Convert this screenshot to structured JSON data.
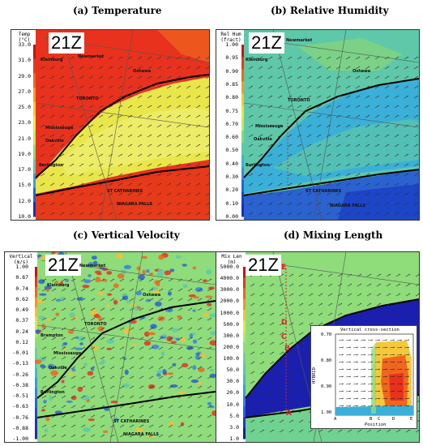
{
  "panels": [
    {
      "title": "(a) Temperature",
      "timestamp": "21Z",
      "colorbar": {
        "title_line1": "Temp",
        "title_line2": "(°C)",
        "ticks": [
          "33.0",
          "31.0",
          "29.0",
          "27.0",
          "25.0",
          "23.0",
          "21.0",
          "19.0",
          "17.0",
          "15.0",
          "12.0",
          "10.0"
        ],
        "colors": [
          "#c81414",
          "#e63a1a",
          "#f0661e",
          "#f59a2a",
          "#f4c83a",
          "#e8e64a",
          "#c6e85a",
          "#8fd870",
          "#5ec8a8",
          "#3aa0d8",
          "#2a62d0",
          "#1a2fb4"
        ]
      },
      "places": [
        "Kleinburg",
        "Newmarket",
        "Oshawa",
        "TORONTO",
        "Mississauga",
        "Oakville",
        "Burlington",
        "ST CATHARINES",
        "NIAGARA FALLS"
      ]
    },
    {
      "title": "(b) Relative Humidity",
      "timestamp": "21Z",
      "colorbar": {
        "title_line1": "Rel Hum",
        "title_line2": "(fract)",
        "ticks": [
          "1.00",
          "0.95",
          "0.90",
          "0.85",
          "0.80",
          "0.75",
          "0.70",
          "0.60",
          "0.50",
          "0.40",
          "0.30",
          "0.20",
          "0.10",
          "0.00"
        ],
        "colors": [
          "#c81414",
          "#e63a1a",
          "#f0661e",
          "#f59a2a",
          "#f4c83a",
          "#e8e64a",
          "#c6e85a",
          "#8fd870",
          "#5ec8a8",
          "#3ab0d8",
          "#3a88e0",
          "#2a62d0",
          "#1a3fc4",
          "#1a2fb4"
        ]
      },
      "places": [
        "Kleinburg",
        "Newmarket",
        "Oshawa",
        "TORONTO",
        "Mississauga",
        "Oakville",
        "Burlington",
        "ST CATHARINES",
        "NIAGARA FALLS"
      ]
    },
    {
      "title": "(c) Vertical Velocity",
      "timestamp": "21Z",
      "colorbar": {
        "title_line1": "Vertical",
        "title_line2": "(m/s)",
        "ticks": [
          "1.00",
          "0.87",
          "0.74",
          "0.62",
          "0.49",
          "0.37",
          "0.24",
          "0.12",
          "-0.01",
          "-0.13",
          "-0.26",
          "-0.38",
          "-0.51",
          "-0.63",
          "-0.76",
          "-0.88",
          "-1.00"
        ],
        "colors": [
          "#c81414",
          "#e03a1a",
          "#f0661e",
          "#f5922a",
          "#f4c03a",
          "#e8e24a",
          "#bce660",
          "#8edc7a",
          "#6fd290",
          "#5ec8a8",
          "#4ab8c8",
          "#3a9cd8",
          "#3a80e0",
          "#2a62d0",
          "#1f4ac4",
          "#1a36b8",
          "#1a2fb4"
        ]
      },
      "places": [
        "Newmarket",
        "Kleinburg",
        "Oshawa",
        "TORONTO",
        "Brampton",
        "Mississauga",
        "Oakville",
        "Burlington",
        "ST CATHARINES",
        "NIAGARA FALLS"
      ]
    },
    {
      "title": "(d) Mixing Length",
      "timestamp": "21Z",
      "colorbar": {
        "title_line1": "Mix Len",
        "title_line2": "(m)",
        "ticks": [
          "5000.0",
          "4000.0",
          "3000.0",
          "2000.0",
          "1000.0",
          "500.0",
          "300.0",
          "200.0",
          "100.0",
          "50.0",
          "30.0",
          "20.0",
          "10.0",
          "5.0",
          "3.0",
          "1.0"
        ],
        "colors": [
          "#c81414",
          "#e03a1a",
          "#f0661e",
          "#f5922a",
          "#f4c03a",
          "#e8e24a",
          "#bce660",
          "#8edc7a",
          "#6fd290",
          "#5ec8a8",
          "#4ab8c8",
          "#3a9cd8",
          "#3a80e0",
          "#2a62d0",
          "#1f3ac4",
          "#1a1f9a"
        ]
      },
      "points": [
        "E",
        "D",
        "C",
        "B",
        "A"
      ],
      "inset": {
        "title": "Vertical cross-section",
        "ylabel": "HYBRID",
        "xlabel": "Position",
        "yticks": [
          "0.70",
          "0.80",
          "0.90",
          "1.00"
        ],
        "xticks": [
          "A",
          "B",
          "C",
          "D",
          "E"
        ]
      }
    }
  ],
  "colors": {
    "lake": "#1a2fb4",
    "land_warm": "#e8321e",
    "land_green": "#8fd870"
  }
}
